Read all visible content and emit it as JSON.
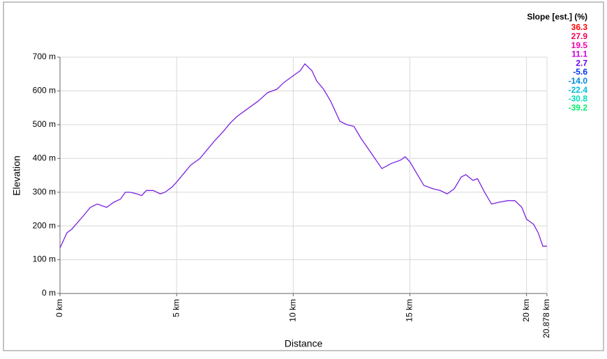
{
  "chart_data": {
    "type": "line",
    "x_label": "Distance",
    "y_label": "Elevation",
    "x": [
      0,
      0.3,
      0.5,
      1,
      1.3,
      1.6,
      2,
      2.3,
      2.6,
      2.8,
      3,
      3.3,
      3.5,
      3.7,
      4,
      4.3,
      4.5,
      4.8,
      5,
      5.3,
      5.6,
      6,
      6.3,
      6.6,
      7,
      7.3,
      7.6,
      8,
      8.5,
      8.9,
      9.3,
      9.6,
      10,
      10.3,
      10.5,
      10.8,
      11,
      11.3,
      11.6,
      12,
      12.3,
      12.6,
      12.9,
      13.3,
      13.8,
      14.2,
      14.6,
      14.8,
      15,
      15.3,
      15.6,
      16,
      16.3,
      16.6,
      16.9,
      17.2,
      17.4,
      17.7,
      17.9,
      18.2,
      18.5,
      18.8,
      19.2,
      19.5,
      19.8,
      20,
      20.3,
      20.5,
      20.7,
      20.878
    ],
    "series": [
      {
        "color": "#7a22e0",
        "values": [
          135,
          180,
          190,
          230,
          255,
          265,
          255,
          270,
          280,
          300,
          300,
          295,
          290,
          305,
          305,
          295,
          300,
          315,
          330,
          355,
          380,
          400,
          425,
          450,
          480,
          505,
          525,
          545,
          570,
          595,
          605,
          625,
          645,
          660,
          680,
          660,
          630,
          605,
          570,
          510,
          500,
          495,
          460,
          420,
          370,
          385,
          395,
          405,
          390,
          355,
          320,
          310,
          305,
          295,
          310,
          345,
          352,
          335,
          340,
          300,
          265,
          270,
          275,
          275,
          255,
          220,
          205,
          180,
          140,
          140
        ]
      }
    ],
    "xlim": [
      0,
      20.878
    ],
    "xticks": [
      {
        "value": 0,
        "label": "0 km"
      },
      {
        "value": 5,
        "label": "5 km"
      },
      {
        "value": 10,
        "label": "10 km"
      },
      {
        "value": 15,
        "label": "15 km"
      },
      {
        "value": 20,
        "label": "20 km"
      },
      {
        "value": 20.878,
        "label": "20.878 km"
      }
    ],
    "ylim": [
      0,
      700
    ],
    "yticks": [
      {
        "value": 0,
        "label": "0 m"
      },
      {
        "value": 100,
        "label": "100 m"
      },
      {
        "value": 200,
        "label": "200 m"
      },
      {
        "value": 300,
        "label": "300 m"
      },
      {
        "value": 400,
        "label": "400 m"
      },
      {
        "value": 500,
        "label": "500 m"
      },
      {
        "value": 600,
        "label": "600 m"
      },
      {
        "value": 700,
        "label": "700 m"
      }
    ],
    "grid": true,
    "slope_legend": {
      "title": "Slope [est.] (%)",
      "entries": [
        {
          "label": "36.3",
          "color": "#ff0000"
        },
        {
          "label": "27.9",
          "color": "#ee0055"
        },
        {
          "label": "19.5",
          "color": "#ee00aa"
        },
        {
          "label": "11.1",
          "color": "#cc00dd"
        },
        {
          "label": "2.7",
          "color": "#6600ee"
        },
        {
          "label": "-5.6",
          "color": "#0033ee"
        },
        {
          "label": "-14.0",
          "color": "#0088dd"
        },
        {
          "label": "-22.4",
          "color": "#00bbdd"
        },
        {
          "label": "-30.8",
          "color": "#00ddbb"
        },
        {
          "label": "-39.2",
          "color": "#00ee66"
        }
      ]
    }
  }
}
